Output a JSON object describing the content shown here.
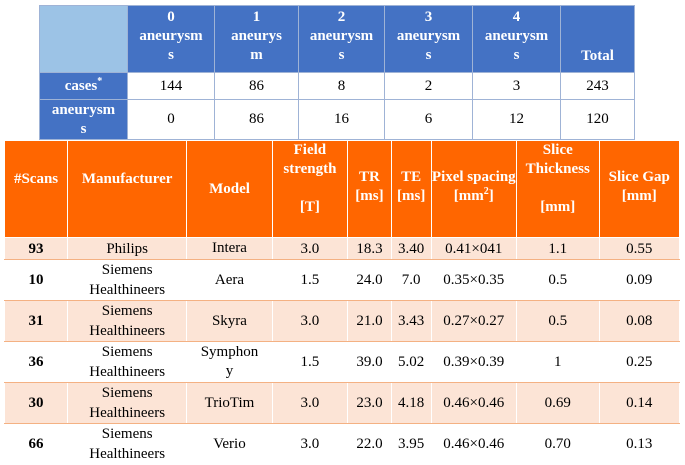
{
  "aneurysm_table": {
    "columns": [
      {
        "count": "0",
        "label": "aneurysm",
        "tail": "s"
      },
      {
        "count": "1",
        "label": "aneurys",
        "tail": "m"
      },
      {
        "count": "2",
        "label": "aneurysm",
        "tail": "s"
      },
      {
        "count": "3",
        "label": "aneurysm",
        "tail": "s"
      },
      {
        "count": "4",
        "label": "aneurysm",
        "tail": "s"
      }
    ],
    "total_label": "Total",
    "rows": [
      {
        "label": "cases",
        "mark": "*",
        "values": [
          "144",
          "86",
          "8",
          "2",
          "3",
          "243"
        ]
      },
      {
        "label": "aneurysm",
        "label_tail": "s",
        "values": [
          "0",
          "86",
          "16",
          "6",
          "12",
          "120"
        ]
      }
    ]
  },
  "scanner_table": {
    "headers": {
      "scans": "#Scans",
      "manufacturer": "Manufacturer",
      "model": "Model",
      "field_strength": "Field strength",
      "field_strength_unit": "[T]",
      "tr": "TR [ms]",
      "te": "TE [ms]",
      "pixel_spacing": "Pixel spacing",
      "pixel_spacing_unit": "[mm",
      "pixel_spacing_exp": "2",
      "pixel_spacing_close": "]",
      "slice_thickness": "Slice Thickness",
      "slice_thickness_unit": "[mm]",
      "slice_gap": "Slice Gap [mm]"
    },
    "rows": [
      {
        "scans": "93",
        "manufacturer": "Philips",
        "manufacturer2": "",
        "model": "Intera",
        "model2": "",
        "field": "3.0",
        "tr": "18.3",
        "te": "3.40",
        "pixel": "0.41×041",
        "thickness": "1.1",
        "gap": "0.55"
      },
      {
        "scans": "10",
        "manufacturer": "Siemens",
        "manufacturer2": "Healthineers",
        "model": "Aera",
        "model2": "",
        "field": "1.5",
        "tr": "24.0",
        "te": "7.0",
        "pixel": "0.35×0.35",
        "thickness": "0.5",
        "gap": "0.09"
      },
      {
        "scans": "31",
        "manufacturer": "Siemens",
        "manufacturer2": "Healthineers",
        "model": "Skyra",
        "model2": "",
        "field": "3.0",
        "tr": "21.0",
        "te": "3.43",
        "pixel": "0.27×0.27",
        "thickness": "0.5",
        "gap": "0.08"
      },
      {
        "scans": "36",
        "manufacturer": "Siemens",
        "manufacturer2": "Healthineers",
        "model": "Symphon",
        "model2": "y",
        "field": "1.5",
        "tr": "39.0",
        "te": "5.02",
        "pixel": "0.39×0.39",
        "thickness": "1",
        "gap": "0.25"
      },
      {
        "scans": "30",
        "manufacturer": "Siemens",
        "manufacturer2": "Healthineers",
        "model": "TrioTim",
        "model2": "",
        "field": "3.0",
        "tr": "23.0",
        "te": "4.18",
        "pixel": "0.46×0.46",
        "thickness": "0.69",
        "gap": "0.14"
      },
      {
        "scans": "66",
        "manufacturer": "Siemens",
        "manufacturer2": "Healthineers",
        "model": "Verio",
        "model2": "",
        "field": "3.0",
        "tr": "22.0",
        "te": "3.95",
        "pixel": "0.46×0.46",
        "thickness": "0.70",
        "gap": "0.13"
      }
    ]
  }
}
